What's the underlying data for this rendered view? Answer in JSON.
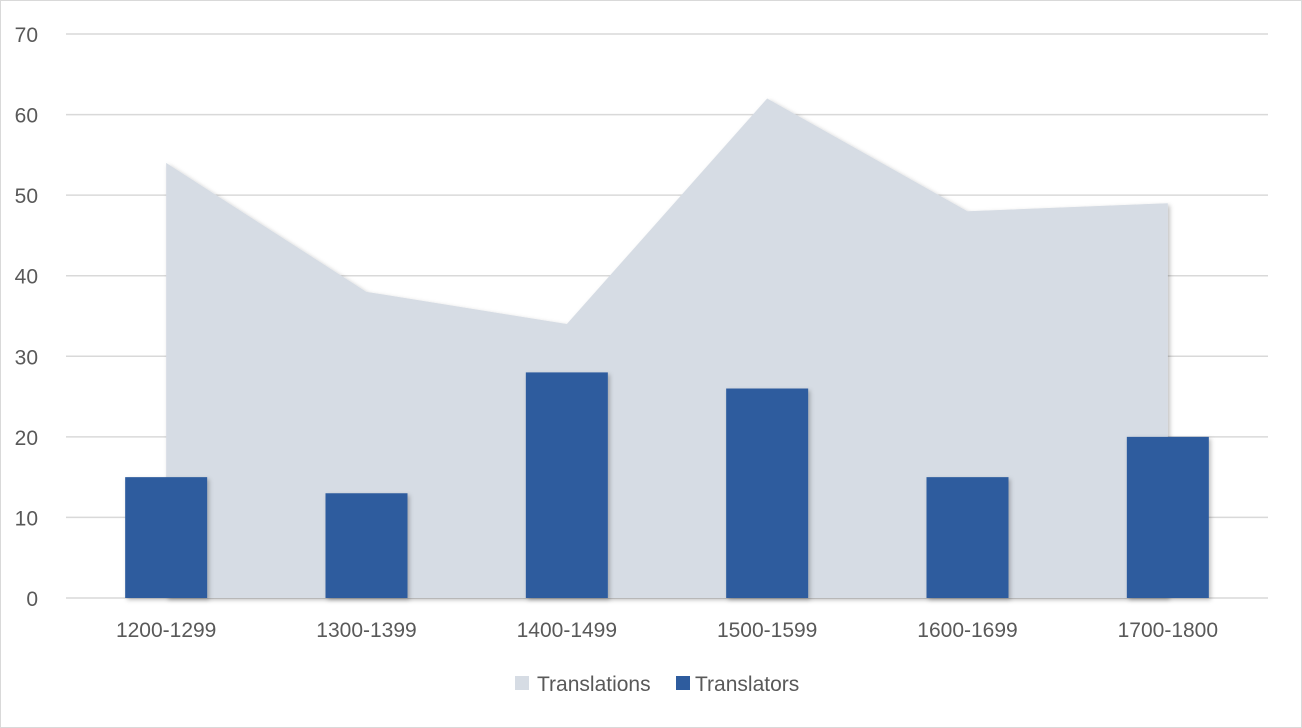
{
  "chart_data": {
    "type": "bar",
    "categories": [
      "1200-1299",
      "1300-1399",
      "1400-1499",
      "1500-1599",
      "1600-1699",
      "1700-1800"
    ],
    "series": [
      {
        "name": "Translations",
        "type": "area",
        "values": [
          54,
          38,
          34,
          62,
          48,
          49
        ]
      },
      {
        "name": "Translators",
        "type": "bar",
        "values": [
          15,
          13,
          28,
          26,
          15,
          20
        ]
      }
    ],
    "title": "",
    "xlabel": "",
    "ylabel": "",
    "ylim": [
      0,
      70
    ],
    "yticks": [
      "0",
      "10",
      "20",
      "30",
      "40",
      "50",
      "60",
      "70"
    ],
    "grid": true,
    "legend_position": "bottom",
    "colors": {
      "Translations": "#d6dce4",
      "Translators": "#2e5c9e",
      "grid": "#d9d9d9",
      "text": "#595959"
    }
  }
}
